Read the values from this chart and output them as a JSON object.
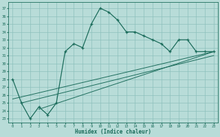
{
  "xlabel": "Humidex (Indice chaleur)",
  "bg_color": "#b8dcd8",
  "grid_color": "#8cc0bc",
  "line_color": "#1a6b5a",
  "xlim": [
    -0.5,
    23.5
  ],
  "ylim": [
    22.5,
    37.8
  ],
  "xticks": [
    0,
    1,
    2,
    3,
    4,
    5,
    6,
    7,
    8,
    9,
    10,
    11,
    12,
    13,
    14,
    15,
    16,
    17,
    18,
    19,
    20,
    21,
    22,
    23
  ],
  "yticks": [
    23,
    24,
    25,
    26,
    27,
    28,
    29,
    30,
    31,
    32,
    33,
    34,
    35,
    36,
    37
  ],
  "main_x": [
    0,
    1,
    2,
    3,
    4,
    5,
    6,
    7,
    8,
    9,
    10,
    11,
    12,
    13,
    14,
    15,
    16,
    17,
    18,
    19,
    20,
    21,
    22,
    23
  ],
  "main_y": [
    28,
    25,
    23,
    24.5,
    23.5,
    25,
    31.5,
    32.5,
    32,
    35,
    37,
    36.5,
    35.5,
    34,
    34,
    33.5,
    33,
    32.5,
    31.5,
    33,
    33,
    31.5,
    31.5,
    31.5
  ],
  "line1_x": [
    0,
    23
  ],
  "line1_y": [
    25.5,
    31.5
  ],
  "line2_x": [
    1,
    23
  ],
  "line2_y": [
    25.0,
    31.0
  ],
  "line3_x": [
    3,
    23
  ],
  "line3_y": [
    24.2,
    31.5
  ]
}
